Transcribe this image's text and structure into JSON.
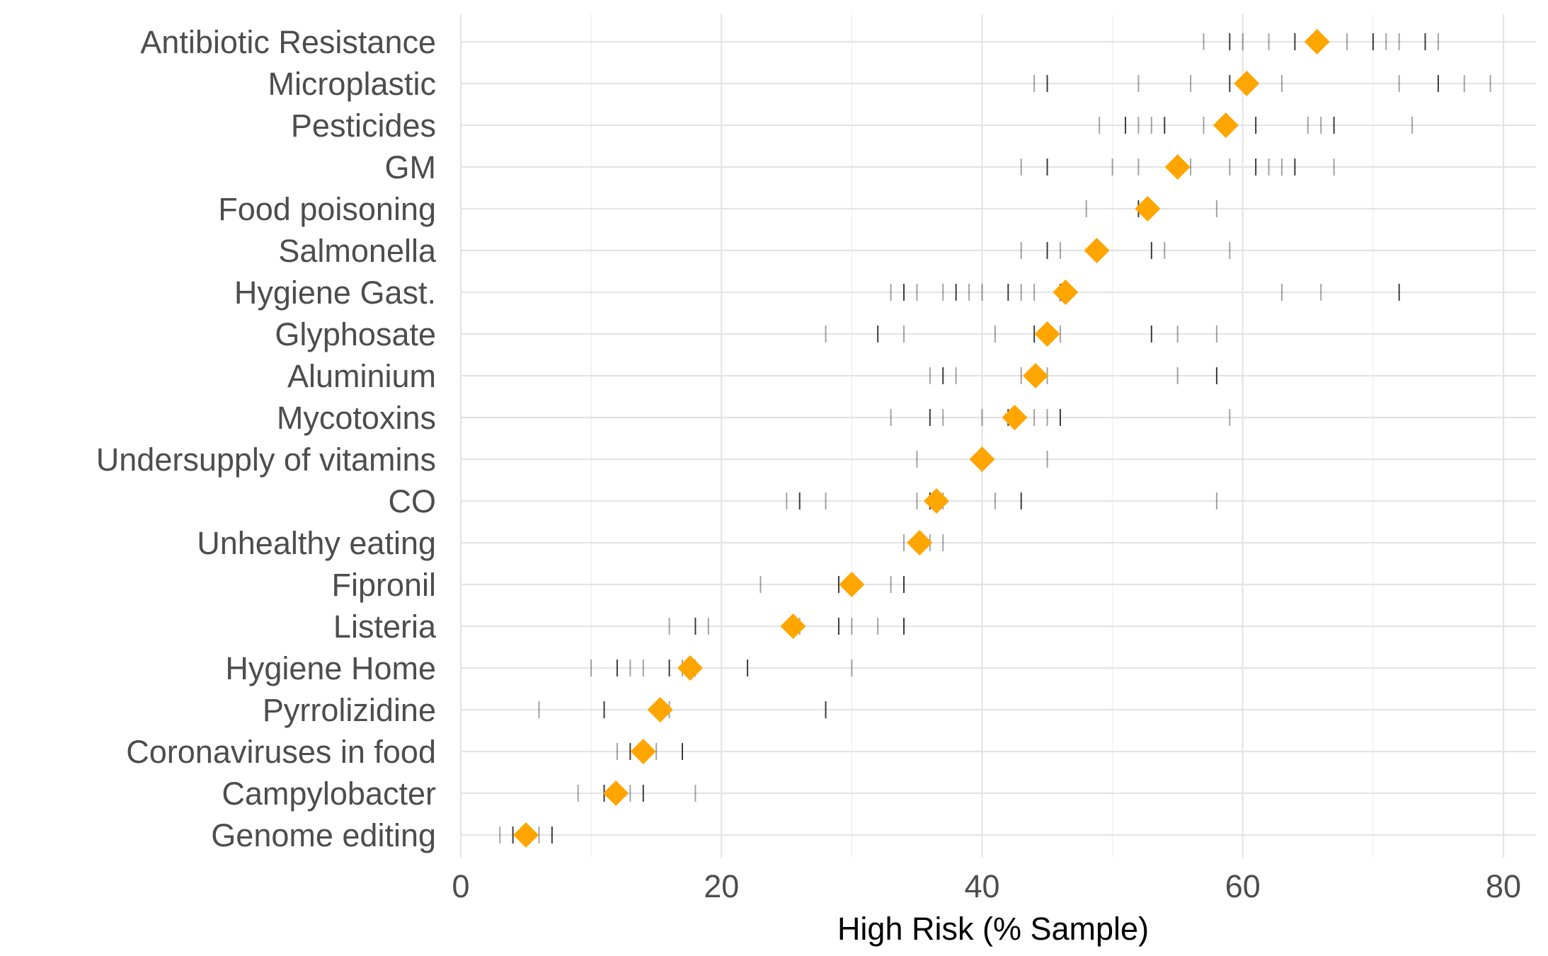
{
  "chart_data": {
    "type": "scatter",
    "title": "",
    "xlabel": "High Risk (% Sample)",
    "ylabel": "",
    "xlim": [
      0,
      80
    ],
    "x_ticks": [
      0,
      20,
      40,
      60,
      80
    ],
    "x_tick_labels": [
      "0",
      "20",
      "40",
      "60",
      "80"
    ],
    "grid": true,
    "legend": "none",
    "colors": {
      "mean_marker": "#FFA500",
      "sample_tick": "#1a1a1a",
      "grid": "#e4e4e4",
      "label": "#4d4d4d"
    },
    "categories": [
      "Antibiotic Resistance",
      "Microplastic",
      "Pesticides",
      "GM",
      "Food poisoning",
      "Salmonella",
      "Hygiene Gast.",
      "Glyphosate",
      "Aluminium",
      "Mycotoxins",
      "Undersupply of vitamins",
      "CO",
      "Unhealthy eating",
      "Fipronil",
      "Listeria",
      "Hygiene Home",
      "Pyrrolizidine",
      "Coronaviruses in food",
      "Campylobacter",
      "Genome editing"
    ],
    "series": [
      {
        "name": "Mean",
        "marker": "diamond",
        "values": [
          65.7,
          60.3,
          58.7,
          55.0,
          52.7,
          48.8,
          46.4,
          45.0,
          44.1,
          42.5,
          40.0,
          36.5,
          35.2,
          30.0,
          25.5,
          17.6,
          15.3,
          14.0,
          11.9,
          5.0
        ]
      },
      {
        "name": "Samples",
        "marker": "vertical-tick",
        "values": [
          [
            57,
            59,
            60,
            62,
            64,
            66,
            68,
            70,
            71,
            72,
            74,
            75
          ],
          [
            44,
            45,
            52,
            56,
            59,
            63,
            72,
            75,
            77,
            79
          ],
          [
            49,
            51,
            52,
            53,
            54,
            57,
            59,
            61,
            65,
            66,
            67,
            73
          ],
          [
            43,
            45,
            50,
            52,
            55,
            56,
            59,
            61,
            62,
            63,
            64,
            67
          ],
          [
            48,
            52,
            53,
            58
          ],
          [
            43,
            45,
            46,
            49,
            53,
            54,
            59
          ],
          [
            33,
            34,
            35,
            37,
            38,
            39,
            40,
            42,
            43,
            44,
            46,
            63,
            66,
            72
          ],
          [
            28,
            32,
            34,
            41,
            44,
            45,
            46,
            53,
            55,
            58
          ],
          [
            36,
            37,
            38,
            43,
            44,
            45,
            55,
            58
          ],
          [
            33,
            36,
            37,
            40,
            42,
            44,
            45,
            46,
            59
          ],
          [
            35,
            40,
            45
          ],
          [
            25,
            26,
            28,
            35,
            36,
            37,
            41,
            43,
            58
          ],
          [
            34,
            35,
            36,
            37
          ],
          [
            23,
            29,
            30,
            33,
            34
          ],
          [
            16,
            18,
            19,
            26,
            29,
            30,
            32,
            34
          ],
          [
            10,
            12,
            13,
            14,
            16,
            17,
            18,
            22,
            30
          ],
          [
            6,
            11,
            15,
            16,
            28
          ],
          [
            12,
            13,
            14,
            15,
            17
          ],
          [
            9,
            11,
            12,
            13,
            14,
            18
          ],
          [
            3,
            4,
            5,
            6,
            7
          ]
        ]
      }
    ]
  }
}
